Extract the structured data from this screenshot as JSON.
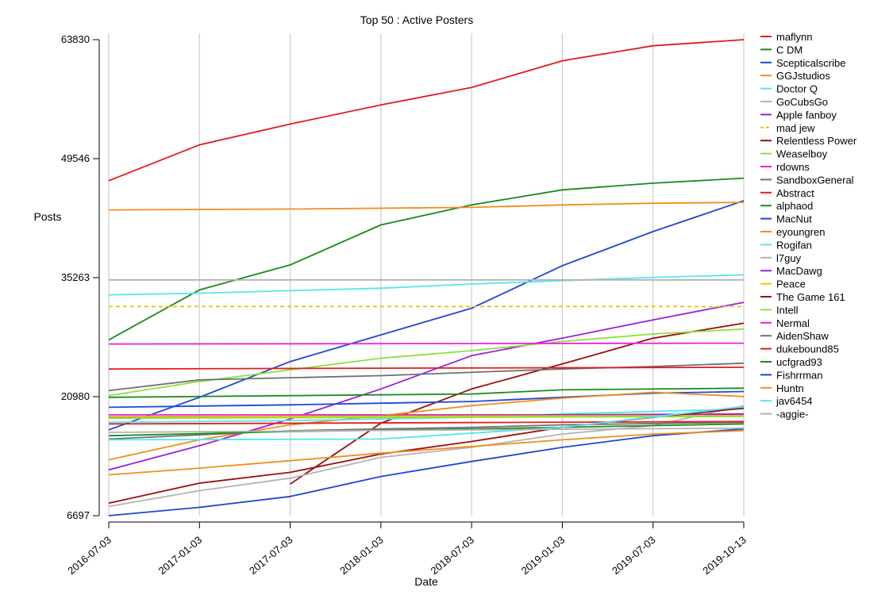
{
  "chart_data": {
    "type": "line",
    "title": "Top 50 : Active Posters",
    "xlabel": "Date",
    "ylabel": "Posts",
    "x_ticks": [
      "2016-07-03",
      "2017-01-03",
      "2017-07-03",
      "2018-01-03",
      "2018-07-03",
      "2019-01-03",
      "2019-07-03",
      "2019-10-13"
    ],
    "y_ticks": [
      6697,
      20980,
      35263,
      49546,
      63830
    ],
    "ylim": [
      6697,
      63830
    ],
    "grid": "vertical",
    "legend_position": "right",
    "series": [
      {
        "name": "maflynn",
        "color": "#e41a1c",
        "dash": false,
        "values": [
          [
            0,
            46900
          ],
          [
            1,
            51200
          ],
          [
            2,
            53700
          ],
          [
            3,
            56000
          ],
          [
            4,
            58100
          ],
          [
            5,
            61300
          ],
          [
            6,
            63100
          ],
          [
            7,
            63830
          ]
        ]
      },
      {
        "name": "C DM",
        "color": "#1a8a1a",
        "dash": false,
        "values": [
          [
            0,
            27800
          ],
          [
            1,
            33800
          ],
          [
            2,
            36800
          ],
          [
            3,
            41600
          ],
          [
            4,
            44000
          ],
          [
            5,
            45800
          ],
          [
            6,
            46600
          ],
          [
            7,
            47200
          ]
        ]
      },
      {
        "name": "Scepticalscribe",
        "color": "#1f47d6",
        "dash": false,
        "values": [
          [
            0,
            17000
          ],
          [
            1,
            20900
          ],
          [
            2,
            25200
          ],
          [
            3,
            28400
          ],
          [
            4,
            31600
          ],
          [
            5,
            36700
          ],
          [
            6,
            40800
          ],
          [
            7,
            44500
          ]
        ]
      },
      {
        "name": "GGJstudios",
        "color": "#f28e1c",
        "dash": false,
        "values": [
          [
            0,
            43400
          ],
          [
            2,
            43500
          ],
          [
            4,
            43700
          ],
          [
            5,
            44000
          ],
          [
            6,
            44200
          ],
          [
            7,
            44300
          ]
        ]
      },
      {
        "name": "Doctor Q",
        "color": "#55e6f0",
        "dash": false,
        "values": [
          [
            0,
            33200
          ],
          [
            1,
            33400
          ],
          [
            2,
            33700
          ],
          [
            3,
            34000
          ],
          [
            4,
            34500
          ],
          [
            5,
            34900
          ],
          [
            6,
            35300
          ],
          [
            7,
            35600
          ]
        ]
      },
      {
        "name": "GoCubsGo",
        "color": "#b3b3b3",
        "dash": false,
        "values": [
          [
            0,
            35000
          ],
          [
            7,
            35000
          ]
        ]
      },
      {
        "name": "Apple fanboy",
        "color": "#9b1fe0",
        "dash": false,
        "values": [
          [
            0,
            12200
          ],
          [
            1,
            15100
          ],
          [
            2,
            18300
          ],
          [
            3,
            21900
          ],
          [
            4,
            25900
          ],
          [
            5,
            28000
          ],
          [
            6,
            30200
          ],
          [
            7,
            32300
          ]
        ]
      },
      {
        "name": "mad jew",
        "color": "#f2c200",
        "dash": true,
        "values": [
          [
            0,
            31800
          ],
          [
            7,
            31800
          ]
        ]
      },
      {
        "name": "Relentless Power",
        "color": "#9e0d0d",
        "dash": false,
        "values": [
          [
            2,
            10500
          ],
          [
            3,
            17800
          ],
          [
            4,
            21900
          ],
          [
            5,
            24900
          ],
          [
            6,
            28000
          ],
          [
            7,
            29800
          ]
        ]
      },
      {
        "name": "Weaselboy",
        "color": "#8ee13c",
        "dash": false,
        "values": [
          [
            0,
            21100
          ],
          [
            1,
            22800
          ],
          [
            2,
            24200
          ],
          [
            3,
            25600
          ],
          [
            4,
            26500
          ],
          [
            5,
            27600
          ],
          [
            6,
            28500
          ],
          [
            7,
            29100
          ]
        ]
      },
      {
        "name": "rdowns",
        "color": "#f01ee0",
        "dash": false,
        "values": [
          [
            0,
            18800
          ],
          [
            3,
            18800
          ],
          [
            7,
            18800
          ]
        ]
      },
      {
        "name": "SandboxGeneral",
        "color": "#707070",
        "dash": false,
        "values": [
          [
            0,
            21700
          ],
          [
            1,
            23000
          ],
          [
            3,
            23500
          ],
          [
            5,
            24300
          ],
          [
            6,
            24600
          ],
          [
            7,
            25000
          ]
        ]
      },
      {
        "name": "Abstract",
        "color": "#e41a1c",
        "dash": false,
        "values": [
          [
            0,
            24300
          ],
          [
            3,
            24400
          ],
          [
            7,
            24500
          ]
        ]
      },
      {
        "name": "alphaod",
        "color": "#1a8a1a",
        "dash": false,
        "values": [
          [
            0,
            20900
          ],
          [
            2,
            21100
          ],
          [
            4,
            21300
          ],
          [
            5,
            21800
          ],
          [
            7,
            22000
          ]
        ]
      },
      {
        "name": "MacNut",
        "color": "#1f47d6",
        "dash": false,
        "values": [
          [
            0,
            19700
          ],
          [
            2,
            20000
          ],
          [
            4,
            20400
          ],
          [
            5,
            20900
          ],
          [
            6,
            21400
          ],
          [
            7,
            21600
          ]
        ]
      },
      {
        "name": "eyoungren",
        "color": "#f28e1c",
        "dash": false,
        "values": [
          [
            0,
            13400
          ],
          [
            1,
            15800
          ],
          [
            2,
            17600
          ],
          [
            3,
            18700
          ],
          [
            4,
            19900
          ],
          [
            5,
            20800
          ],
          [
            6,
            21500
          ],
          [
            7,
            21000
          ]
        ]
      },
      {
        "name": "Rogifan",
        "color": "#55e6f0",
        "dash": false,
        "values": [
          [
            0,
            17900
          ],
          [
            2,
            18100
          ],
          [
            4,
            18500
          ],
          [
            5,
            18900
          ],
          [
            7,
            19500
          ]
        ]
      },
      {
        "name": "l7guy",
        "color": "#b3b3b3",
        "dash": false,
        "values": [
          [
            0,
            7800
          ],
          [
            1,
            9700
          ],
          [
            2,
            11200
          ],
          [
            3,
            13700
          ],
          [
            4,
            14900
          ],
          [
            5,
            16500
          ],
          [
            6,
            17500
          ],
          [
            7,
            19900
          ]
        ]
      },
      {
        "name": "MacDawg",
        "color": "#9b1fe0",
        "dash": false,
        "values": [
          [
            0,
            18500
          ],
          [
            3,
            18700
          ],
          [
            7,
            18900
          ]
        ]
      },
      {
        "name": "Peace",
        "color": "#f2c200",
        "dash": false,
        "values": [
          [
            0,
            18600
          ],
          [
            7,
            18700
          ]
        ]
      },
      {
        "name": "The Game 161",
        "color": "#9e0d0d",
        "dash": false,
        "values": [
          [
            0,
            8200
          ],
          [
            1,
            10600
          ],
          [
            2,
            11900
          ],
          [
            3,
            14100
          ],
          [
            4,
            15600
          ],
          [
            5,
            17300
          ],
          [
            6,
            18500
          ],
          [
            7,
            19600
          ]
        ]
      },
      {
        "name": "Intell",
        "color": "#8ee13c",
        "dash": false,
        "values": [
          [
            0,
            18400
          ],
          [
            7,
            18600
          ]
        ]
      },
      {
        "name": "Nermal",
        "color": "#f01ee0",
        "dash": false,
        "values": [
          [
            0,
            27300
          ],
          [
            7,
            27400
          ]
        ]
      },
      {
        "name": "AidenShaw",
        "color": "#707070",
        "dash": false,
        "values": [
          [
            0,
            15900
          ],
          [
            2,
            16900
          ],
          [
            4,
            17300
          ],
          [
            5,
            17600
          ],
          [
            7,
            17900
          ]
        ]
      },
      {
        "name": "dukebound85",
        "color": "#e41a1c",
        "dash": false,
        "values": [
          [
            0,
            17700
          ],
          [
            7,
            18000
          ]
        ]
      },
      {
        "name": "ucfgrad93",
        "color": "#1a8a1a",
        "dash": false,
        "values": [
          [
            0,
            16300
          ],
          [
            2,
            16800
          ],
          [
            4,
            17100
          ],
          [
            5,
            17300
          ],
          [
            7,
            17700
          ]
        ]
      },
      {
        "name": "Fishrrman",
        "color": "#1f47d6",
        "dash": false,
        "values": [
          [
            0,
            6697
          ],
          [
            1,
            7700
          ],
          [
            2,
            9000
          ],
          [
            3,
            11400
          ],
          [
            4,
            13200
          ],
          [
            5,
            14900
          ],
          [
            6,
            16300
          ],
          [
            7,
            17100
          ]
        ]
      },
      {
        "name": "Huntn",
        "color": "#f28e1c",
        "dash": false,
        "values": [
          [
            0,
            11600
          ],
          [
            1,
            12400
          ],
          [
            2,
            13300
          ],
          [
            3,
            14200
          ],
          [
            4,
            15000
          ],
          [
            5,
            15800
          ],
          [
            6,
            16500
          ],
          [
            7,
            16900
          ]
        ]
      },
      {
        "name": "jav6454",
        "color": "#55e6f0",
        "dash": false,
        "values": [
          [
            0,
            15800
          ],
          [
            3,
            15900
          ],
          [
            5,
            17300
          ],
          [
            7,
            19800
          ]
        ]
      },
      {
        "name": "-aggie-",
        "color": "#b3b3b3",
        "dash": false,
        "values": [
          [
            0,
            16700
          ],
          [
            4,
            17000
          ],
          [
            7,
            17200
          ]
        ]
      }
    ]
  }
}
